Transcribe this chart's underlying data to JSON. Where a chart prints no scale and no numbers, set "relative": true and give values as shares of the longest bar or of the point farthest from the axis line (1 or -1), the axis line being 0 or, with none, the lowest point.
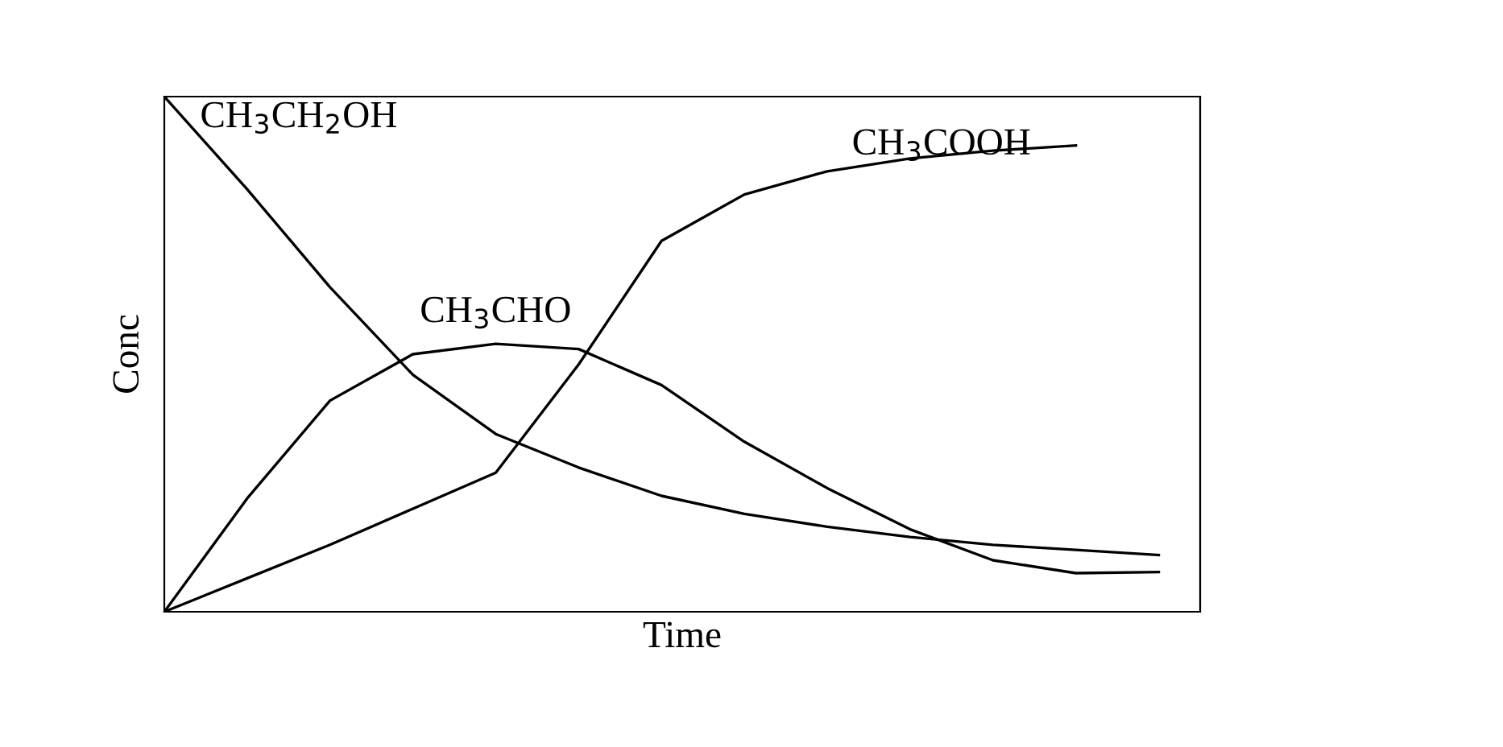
{
  "chart_data": {
    "type": "line",
    "relative": true,
    "xlabel": "Time",
    "ylabel": "Conc",
    "tick_labels": false,
    "legend": false,
    "marker": "none",
    "line_style": "solid",
    "categories": [
      null,
      null,
      null,
      null,
      null,
      null,
      null,
      null,
      null,
      null,
      null,
      null,
      null
    ],
    "series": [
      {
        "name": "CH$_{3}$CH$_{2}$OH",
        "color": "#000000",
        "values": [
          1,
          0.82,
          0.63,
          0.46,
          0.345,
          0.28,
          0.225,
          0.19,
          0.165,
          0.145,
          0.13,
          0.12,
          0.11
        ]
      },
      {
        "name": "CH$_{3}$CHO",
        "color": "#000000",
        "values": [
          0,
          0.22,
          0.41,
          0.5,
          0.52,
          0.51,
          0.44,
          0.33,
          0.24,
          0.16,
          0.1,
          0.075,
          0.077
        ]
      },
      {
        "name": "CH$_{3}$COOH",
        "color": "#000000",
        "values": [
          0,
          0.065,
          0.13,
          0.2,
          0.27,
          0.48,
          0.72,
          0.81,
          0.855,
          0.88,
          0.895,
          0.905,
          null
        ]
      }
    ]
  }
}
